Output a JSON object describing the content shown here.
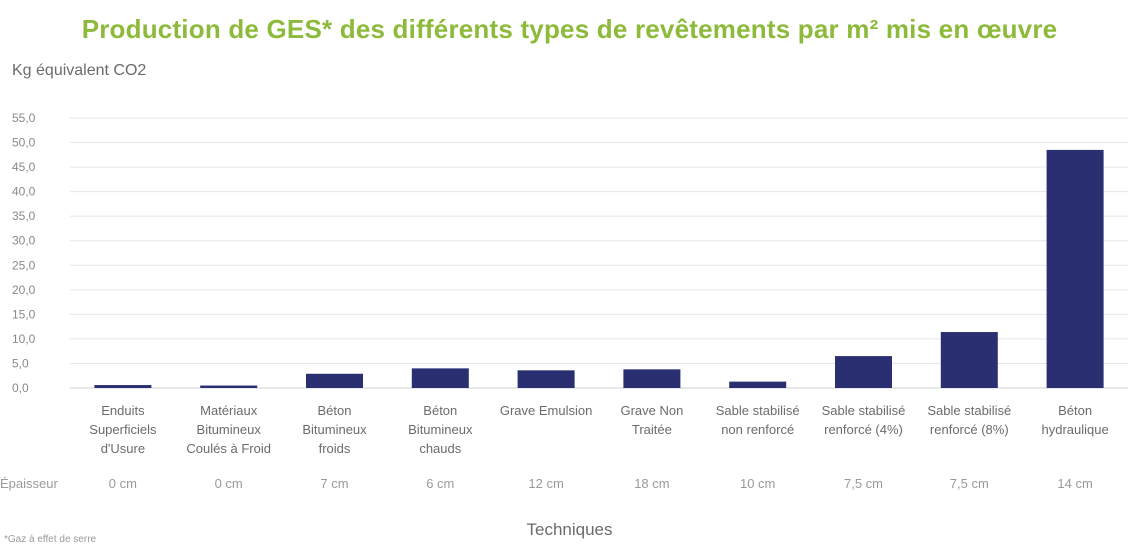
{
  "chart_data": {
    "type": "bar",
    "title": "Production de GES* des différents types de revêtements par m² mis en œuvre",
    "ylabel": "Kg équivalent CO2",
    "xlabel": "Techniques",
    "ylim": [
      0,
      55
    ],
    "yticks": [
      "0,0",
      "5,0",
      "10,0",
      "15,0",
      "20,0",
      "25,0",
      "30,0",
      "35,0",
      "40,0",
      "45,0",
      "50,0",
      "55,0"
    ],
    "categories": [
      "Enduits Superficiels d'Usure",
      "Matériaux Bitumineux Coulés à Froid",
      "Béton Bitumineux froids",
      "Béton Bitumineux chauds",
      "Grave Emulsion",
      "Grave Non Traitée",
      "Sable stabilisé non renforcé",
      "Sable stabilisé renforcé (4%)",
      "Sable stabilisé renforcé (8%)",
      "Béton hydraulique"
    ],
    "category_lines": [
      [
        "Enduits",
        "Superficiels",
        "d'Usure"
      ],
      [
        "Matériaux",
        "Bitumineux",
        "Coulés à Froid"
      ],
      [
        "Béton",
        "Bitumineux",
        "froids"
      ],
      [
        "Béton",
        "Bitumineux",
        "chauds"
      ],
      [
        "Grave Emulsion"
      ],
      [
        "Grave Non",
        "Traitée"
      ],
      [
        "Sable stabilisé",
        "non renforcé"
      ],
      [
        "Sable stabilisé",
        "renforcé (4%)"
      ],
      [
        "Sable stabilisé",
        "renforcé (8%)"
      ],
      [
        "Béton",
        "hydraulique"
      ]
    ],
    "values": [
      0.6,
      0.5,
      2.9,
      4.0,
      3.6,
      3.8,
      1.3,
      6.5,
      11.4,
      48.5
    ],
    "bar_color": "#2a2f72",
    "grid": true,
    "legend": "none"
  },
  "thickness": {
    "label": "Épaisseur",
    "values": [
      "0 cm",
      "0 cm",
      "7 cm",
      "6 cm",
      "12 cm",
      "18 cm",
      "10 cm",
      "7,5 cm",
      "7,5 cm",
      "14 cm"
    ]
  },
  "footnote": "*Gaz à effet de serre"
}
